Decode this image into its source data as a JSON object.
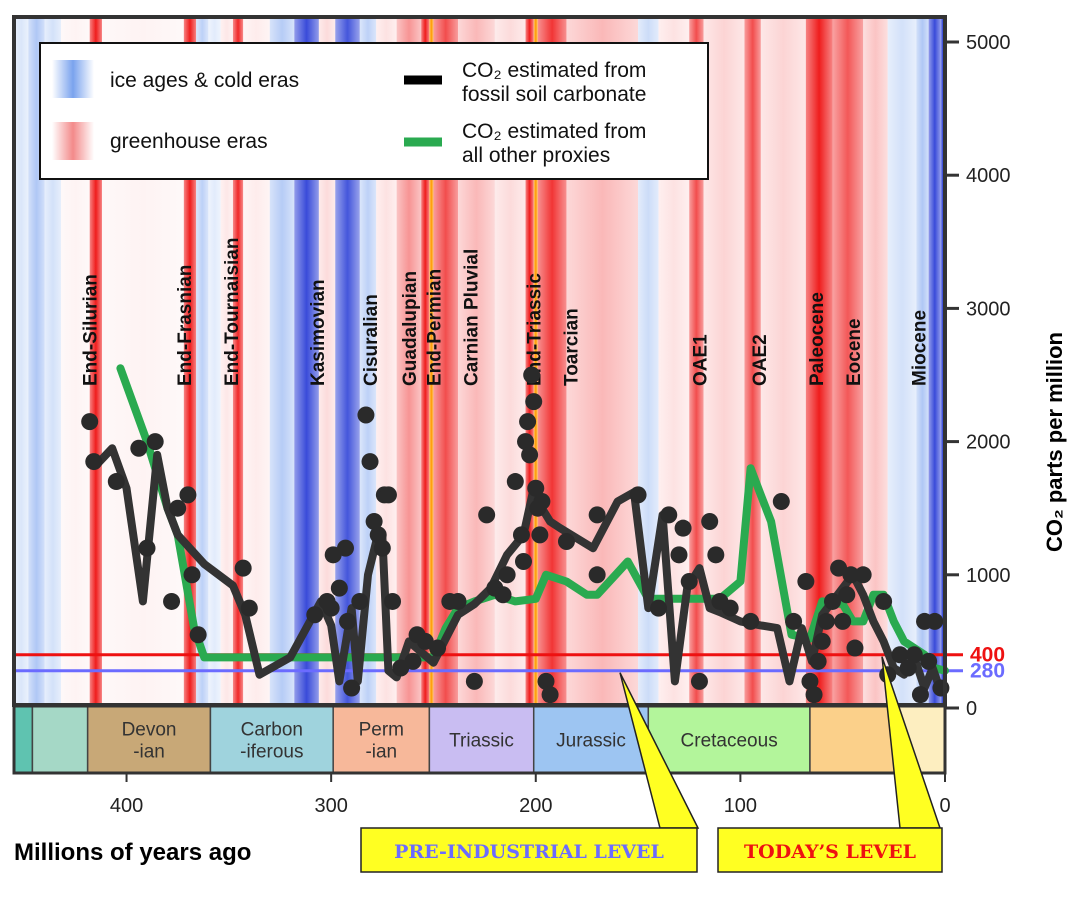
{
  "chart_data": {
    "type": "line",
    "xlabel": "Millions of years ago",
    "ylabel": "CO₂ parts per million",
    "xlim": [
      455,
      0
    ],
    "ylim": [
      0,
      5000
    ],
    "x_ticks": [
      400,
      300,
      200,
      100,
      0
    ],
    "y_ticks": [
      0,
      1000,
      2000,
      3000,
      4000,
      5000
    ],
    "colors": {
      "soil": "#333333",
      "other": "#2aaa50",
      "today": "#ee1111",
      "preind": "#6b6bff",
      "ice": "#3355dd",
      "warm": "#ee2222"
    },
    "climate_bands": [
      {
        "start": 455,
        "end": 448,
        "kind": "cold",
        "level": 0.25
      },
      {
        "start": 448,
        "end": 440,
        "kind": "cold",
        "level": 0.55
      },
      {
        "start": 440,
        "end": 432,
        "kind": "cold",
        "level": 0.3
      },
      {
        "start": 432,
        "end": 418,
        "kind": "warm",
        "level": 0.05
      },
      {
        "start": 418,
        "end": 412,
        "kind": "warm",
        "level": 0.95
      },
      {
        "start": 412,
        "end": 372,
        "kind": "warm",
        "level": 0.05
      },
      {
        "start": 372,
        "end": 366,
        "kind": "warm",
        "level": 0.95
      },
      {
        "start": 366,
        "end": 360,
        "kind": "cold",
        "level": 0.45
      },
      {
        "start": 360,
        "end": 354,
        "kind": "cold",
        "level": 0.2
      },
      {
        "start": 354,
        "end": 348,
        "kind": "warm",
        "level": 0.1
      },
      {
        "start": 348,
        "end": 343,
        "kind": "warm",
        "level": 0.9
      },
      {
        "start": 343,
        "end": 330,
        "kind": "warm",
        "level": 0.08
      },
      {
        "start": 330,
        "end": 318,
        "kind": "cold",
        "level": 0.5
      },
      {
        "start": 318,
        "end": 306,
        "kind": "cold",
        "level": 0.85
      },
      {
        "start": 306,
        "end": 298,
        "kind": "warm",
        "level": 0.15
      },
      {
        "start": 298,
        "end": 286,
        "kind": "cold",
        "level": 0.8
      },
      {
        "start": 286,
        "end": 278,
        "kind": "cold",
        "level": 0.45
      },
      {
        "start": 278,
        "end": 268,
        "kind": "warm",
        "level": 0.12
      },
      {
        "start": 268,
        "end": 256,
        "kind": "warm",
        "level": 0.45
      },
      {
        "start": 256,
        "end": 252,
        "kind": "warm",
        "level": 0.95
      },
      {
        "start": 252,
        "end": 250,
        "kind": "hot",
        "level": 1.0
      },
      {
        "start": 250,
        "end": 238,
        "kind": "warm",
        "level": 0.75
      },
      {
        "start": 238,
        "end": 220,
        "kind": "warm",
        "level": 0.3
      },
      {
        "start": 220,
        "end": 205,
        "kind": "warm",
        "level": 0.15
      },
      {
        "start": 205,
        "end": 201,
        "kind": "warm",
        "level": 0.95
      },
      {
        "start": 201,
        "end": 199,
        "kind": "hot",
        "level": 1.0
      },
      {
        "start": 199,
        "end": 185,
        "kind": "warm",
        "level": 0.85
      },
      {
        "start": 185,
        "end": 150,
        "kind": "warm",
        "level": 0.3
      },
      {
        "start": 150,
        "end": 140,
        "kind": "cold",
        "level": 0.35
      },
      {
        "start": 140,
        "end": 125,
        "kind": "warm",
        "level": 0.12
      },
      {
        "start": 125,
        "end": 118,
        "kind": "warm",
        "level": 0.75
      },
      {
        "start": 118,
        "end": 98,
        "kind": "warm",
        "level": 0.18
      },
      {
        "start": 98,
        "end": 90,
        "kind": "warm",
        "level": 0.75
      },
      {
        "start": 90,
        "end": 68,
        "kind": "warm",
        "level": 0.18
      },
      {
        "start": 68,
        "end": 55,
        "kind": "warm",
        "level": 0.95
      },
      {
        "start": 55,
        "end": 40,
        "kind": "warm",
        "level": 0.7
      },
      {
        "start": 40,
        "end": 28,
        "kind": "warm",
        "level": 0.25
      },
      {
        "start": 28,
        "end": 14,
        "kind": "cold",
        "level": 0.3
      },
      {
        "start": 14,
        "end": 8,
        "kind": "cold",
        "level": 0.55
      },
      {
        "start": 8,
        "end": 2,
        "kind": "cold",
        "level": 0.85
      },
      {
        "start": 2,
        "end": 0,
        "kind": "cold",
        "level": 0.95
      }
    ],
    "events": [
      {
        "name": "End-Silurian",
        "age": 418
      },
      {
        "name": "End-Frasnian",
        "age": 372
      },
      {
        "name": "End-Tournaisian",
        "age": 349
      },
      {
        "name": "Kasimovian",
        "age": 307
      },
      {
        "name": "Cisuralian",
        "age": 281
      },
      {
        "name": "Guadalupian",
        "age": 262
      },
      {
        "name": "End-Permian",
        "age": 250
      },
      {
        "name": "Carnian Pluvial",
        "age": 232
      },
      {
        "name": "End-Triassic",
        "age": 201
      },
      {
        "name": "Toarcian",
        "age": 183
      },
      {
        "name": "OAE1",
        "age": 120
      },
      {
        "name": "OAE2",
        "age": 91
      },
      {
        "name": "Paleocene",
        "age": 63
      },
      {
        "name": "Eocene",
        "age": 45
      },
      {
        "name": "Miocene",
        "age": 13
      }
    ],
    "periods": [
      {
        "name": "",
        "start": 455,
        "end": 446,
        "color": "#5fc3b0"
      },
      {
        "name": "",
        "start": 446,
        "end": 419,
        "color": "#a5d8c6"
      },
      {
        "name": "Devon\n-ian",
        "start": 419,
        "end": 359,
        "color": "#c8a877"
      },
      {
        "name": "Carbon\n-iferous",
        "start": 359,
        "end": 299,
        "color": "#9fd3dd"
      },
      {
        "name": "Perm\n-ian",
        "start": 299,
        "end": 252,
        "color": "#f7b89a"
      },
      {
        "name": "Triassic",
        "start": 252,
        "end": 201,
        "color": "#c9bdf2"
      },
      {
        "name": "Jurassic",
        "start": 201,
        "end": 145,
        "color": "#9dc5f2"
      },
      {
        "name": "Cretaceous",
        "start": 145,
        "end": 66,
        "color": "#b3f59b"
      },
      {
        "name": "",
        "start": 66,
        "end": 23,
        "color": "#fbd08a"
      },
      {
        "name": "",
        "start": 23,
        "end": 0,
        "color": "#fdeec0"
      }
    ],
    "series": [
      {
        "name": "CO₂ estimated from fossil soil carbonate",
        "x": [
          415,
          407,
          400,
          392,
          385,
          380,
          375,
          362,
          348,
          342,
          335,
          320,
          305,
          300,
          296,
          290,
          287,
          282,
          278,
          275,
          272,
          268,
          262,
          256,
          250,
          244,
          238,
          230,
          222,
          214,
          206,
          201,
          197,
          193,
          188,
          172,
          160,
          152,
          145,
          138,
          132,
          126,
          120,
          115,
          110,
          100,
          90,
          82,
          76,
          70,
          65,
          60,
          55,
          50,
          45,
          40,
          35,
          30,
          25,
          20,
          15,
          10,
          6,
          2
        ],
        "y": [
          1820,
          1950,
          1650,
          800,
          1900,
          1500,
          1300,
          1080,
          920,
          700,
          250,
          380,
          800,
          620,
          200,
          750,
          200,
          1000,
          1250,
          1300,
          280,
          230,
          500,
          420,
          340,
          520,
          700,
          780,
          900,
          1150,
          1300,
          1650,
          1500,
          1400,
          1350,
          1200,
          1550,
          1620,
          750,
          1450,
          200,
          900,
          1050,
          750,
          720,
          650,
          620,
          600,
          200,
          600,
          350,
          700,
          800,
          900,
          1000,
          850,
          650,
          500,
          300,
          250,
          380,
          150,
          300,
          120
        ]
      },
      {
        "name": "CO₂ estimated from all other proxies",
        "x": [
          403,
          390,
          380,
          375,
          367,
          362,
          355,
          340,
          320,
          300,
          290,
          280,
          270,
          260,
          250,
          244,
          238,
          230,
          220,
          210,
          200,
          195,
          185,
          175,
          170,
          155,
          145,
          140,
          130,
          120,
          110,
          100,
          95,
          90,
          85,
          75,
          66,
          60,
          50,
          45,
          40,
          35,
          30,
          25,
          20,
          10,
          5,
          0
        ],
        "y": [
          2550,
          2000,
          1500,
          1300,
          600,
          380,
          380,
          380,
          380,
          380,
          380,
          380,
          380,
          380,
          380,
          600,
          750,
          800,
          850,
          800,
          820,
          1000,
          950,
          850,
          850,
          1100,
          820,
          820,
          820,
          820,
          820,
          950,
          1800,
          1600,
          1400,
          550,
          520,
          800,
          780,
          650,
          650,
          850,
          850,
          650,
          500,
          400,
          300,
          280
        ]
      }
    ],
    "scatter": {
      "name": "soil carbonate data points",
      "x": [
        418,
        416,
        405,
        394,
        390,
        386,
        378,
        375,
        370,
        368,
        365,
        343,
        340,
        308,
        302,
        300,
        299,
        296,
        293,
        292,
        290,
        286,
        283,
        281,
        279,
        277,
        275,
        274,
        272,
        270,
        266,
        260,
        258,
        254,
        248,
        242,
        238,
        230,
        224,
        220,
        216,
        214,
        210,
        207,
        206,
        205,
        204,
        203,
        202,
        201,
        200,
        199,
        198,
        197,
        195,
        193,
        185,
        170,
        170,
        150,
        140,
        135,
        130,
        128,
        125,
        120,
        115,
        112,
        110,
        105,
        95,
        80,
        74,
        68,
        66,
        64,
        62,
        60,
        58,
        55,
        52,
        50,
        48,
        46,
        44,
        40,
        30,
        28,
        22,
        18,
        15,
        12,
        10,
        8,
        5,
        2
      ],
      "y": [
        2150,
        1850,
        1700,
        1950,
        1200,
        2000,
        800,
        1500,
        1600,
        1000,
        550,
        1050,
        750,
        700,
        800,
        750,
        1150,
        900,
        1200,
        650,
        150,
        800,
        2200,
        1850,
        1400,
        1300,
        1200,
        1600,
        1600,
        800,
        300,
        350,
        550,
        500,
        450,
        800,
        800,
        200,
        1450,
        900,
        850,
        1000,
        1700,
        1300,
        1100,
        2000,
        2150,
        1900,
        2500,
        2300,
        1650,
        1500,
        1300,
        1550,
        200,
        100,
        1250,
        1450,
        1000,
        1600,
        750,
        1450,
        1150,
        1350,
        950,
        200,
        1400,
        1150,
        800,
        750,
        650,
        1550,
        650,
        950,
        200,
        100,
        350,
        500,
        650,
        800,
        1050,
        650,
        850,
        1000,
        450,
        1000,
        800,
        250,
        400,
        300,
        400,
        100,
        650,
        350,
        650,
        150
      ]
    },
    "reference_lines": [
      {
        "value": 400,
        "label": "400",
        "color": "#ee1111"
      },
      {
        "value": 280,
        "label": "280",
        "color": "#6b6bff"
      }
    ],
    "legend": {
      "cold": "ice ages & cold eras",
      "warm": "greenhouse eras",
      "soil": [
        "CO₂ estimated from",
        "fossil soil carbonate"
      ],
      "other": [
        "CO₂ estimated from",
        "all other proxies"
      ]
    },
    "callouts": {
      "preindustrial": "PRE-INDUSTRIAL LEVEL",
      "today": "TODAY’S LEVEL"
    }
  }
}
